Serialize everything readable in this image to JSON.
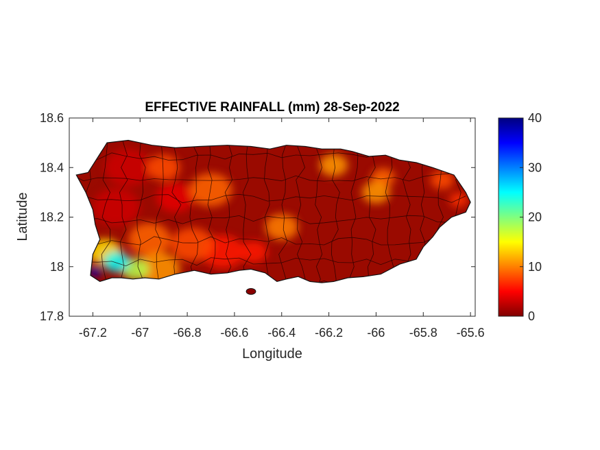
{
  "chart_data": {
    "type": "heatmap",
    "title": "EFFECTIVE RAINFALL (mm) 28-Sep-2022",
    "xlabel": "Longitude",
    "ylabel": "Latitude",
    "xlim": [
      -67.3,
      -65.58
    ],
    "ylim": [
      17.8,
      18.6
    ],
    "xticks": [
      -67.2,
      -67,
      -66.8,
      -66.6,
      -66.4,
      -66.2,
      -66,
      -65.8,
      -65.6
    ],
    "xtick_labels": [
      "-67.2",
      "-67",
      "-66.8",
      "-66.6",
      "-66.4",
      "-66.2",
      "-66",
      "-65.8",
      "-65.6"
    ],
    "yticks": [
      17.8,
      18,
      18.2,
      18.4,
      18.6
    ],
    "ytick_labels": [
      "17.8",
      "18",
      "18.2",
      "18.4",
      "18.6"
    ],
    "colorbar": {
      "colormap": "jet",
      "clim": [
        0,
        40
      ],
      "ticks": [
        0,
        10,
        20,
        30,
        40
      ],
      "tick_labels": [
        "0",
        "10",
        "20",
        "30",
        "40"
      ]
    },
    "grid": false,
    "island_outline": [
      [
        -67.27,
        18.37
      ],
      [
        -67.22,
        18.38
      ],
      [
        -67.16,
        18.47
      ],
      [
        -67.14,
        18.5
      ],
      [
        -67.05,
        18.51
      ],
      [
        -66.95,
        18.49
      ],
      [
        -66.85,
        18.48
      ],
      [
        -66.75,
        18.485
      ],
      [
        -66.63,
        18.49
      ],
      [
        -66.53,
        18.485
      ],
      [
        -66.45,
        18.475
      ],
      [
        -66.38,
        18.49
      ],
      [
        -66.3,
        18.485
      ],
      [
        -66.23,
        18.475
      ],
      [
        -66.15,
        18.475
      ],
      [
        -66.1,
        18.465
      ],
      [
        -66.03,
        18.445
      ],
      [
        -65.96,
        18.45
      ],
      [
        -65.9,
        18.43
      ],
      [
        -65.83,
        18.42
      ],
      [
        -65.76,
        18.4
      ],
      [
        -65.67,
        18.37
      ],
      [
        -65.62,
        18.3
      ],
      [
        -65.6,
        18.26
      ],
      [
        -65.62,
        18.22
      ],
      [
        -65.68,
        18.2
      ],
      [
        -65.73,
        18.16
      ],
      [
        -65.76,
        18.12
      ],
      [
        -65.8,
        18.08
      ],
      [
        -65.83,
        18.03
      ],
      [
        -65.9,
        18.01
      ],
      [
        -65.98,
        17.97
      ],
      [
        -66.05,
        17.96
      ],
      [
        -66.12,
        17.955
      ],
      [
        -66.18,
        17.94
      ],
      [
        -66.23,
        17.935
      ],
      [
        -66.28,
        17.94
      ],
      [
        -66.33,
        17.96
      ],
      [
        -66.38,
        17.95
      ],
      [
        -66.42,
        17.94
      ],
      [
        -66.47,
        17.975
      ],
      [
        -66.53,
        17.99
      ],
      [
        -66.58,
        17.985
      ],
      [
        -66.63,
        17.975
      ],
      [
        -66.7,
        17.97
      ],
      [
        -66.77,
        17.985
      ],
      [
        -66.85,
        17.97
      ],
      [
        -66.92,
        17.95
      ],
      [
        -66.98,
        17.955
      ],
      [
        -67.03,
        17.95
      ],
      [
        -67.08,
        17.955
      ],
      [
        -67.12,
        17.955
      ],
      [
        -67.17,
        17.94
      ],
      [
        -67.21,
        17.965
      ],
      [
        -67.2,
        18.05
      ],
      [
        -67.17,
        18.11
      ],
      [
        -67.19,
        18.17
      ],
      [
        -67.2,
        18.23
      ],
      [
        -67.23,
        18.3
      ],
      [
        -67.27,
        18.37
      ]
    ],
    "offshore_islets": [
      {
        "center": [
          -66.53,
          17.9
        ],
        "rx": 0.02,
        "ry": 0.012
      }
    ],
    "rainfall_hotspots": [
      {
        "center": [
          -67.19,
          17.98
        ],
        "radius": 0.028,
        "value": 38
      },
      {
        "center": [
          -67.1,
          18.02
        ],
        "radius": 0.055,
        "value": 25
      },
      {
        "center": [
          -67.02,
          17.99
        ],
        "radius": 0.06,
        "value": 18
      },
      {
        "center": [
          -67.15,
          18.06
        ],
        "radius": 0.07,
        "value": 14
      },
      {
        "center": [
          -66.92,
          17.99
        ],
        "radius": 0.09,
        "value": 11
      },
      {
        "center": [
          -66.96,
          18.11
        ],
        "radius": 0.09,
        "value": 9
      },
      {
        "center": [
          -66.78,
          18.09
        ],
        "radius": 0.09,
        "value": 8
      },
      {
        "center": [
          -66.7,
          18.31
        ],
        "radius": 0.09,
        "value": 9
      },
      {
        "center": [
          -66.9,
          18.4
        ],
        "radius": 0.07,
        "value": 8
      },
      {
        "center": [
          -66.65,
          18.06
        ],
        "radius": 0.09,
        "value": 6
      },
      {
        "center": [
          -66.4,
          18.16
        ],
        "radius": 0.07,
        "value": 10
      },
      {
        "center": [
          -66.52,
          18.06
        ],
        "radius": 0.06,
        "value": 6
      },
      {
        "center": [
          -66.18,
          18.41
        ],
        "radius": 0.06,
        "value": 11
      },
      {
        "center": [
          -66.0,
          18.3
        ],
        "radius": 0.06,
        "value": 11
      },
      {
        "center": [
          -65.97,
          18.36
        ],
        "radius": 0.05,
        "value": 9
      },
      {
        "center": [
          -65.72,
          18.35
        ],
        "radius": 0.05,
        "value": 8
      },
      {
        "center": [
          -65.65,
          18.27
        ],
        "radius": 0.04,
        "value": 7
      },
      {
        "center": [
          -67.05,
          18.4
        ],
        "radius": 0.1,
        "value": 3
      },
      {
        "center": [
          -67.1,
          18.24
        ],
        "radius": 0.1,
        "value": 3
      },
      {
        "center": [
          -66.85,
          18.28
        ],
        "radius": 0.08,
        "value": 4
      }
    ]
  }
}
